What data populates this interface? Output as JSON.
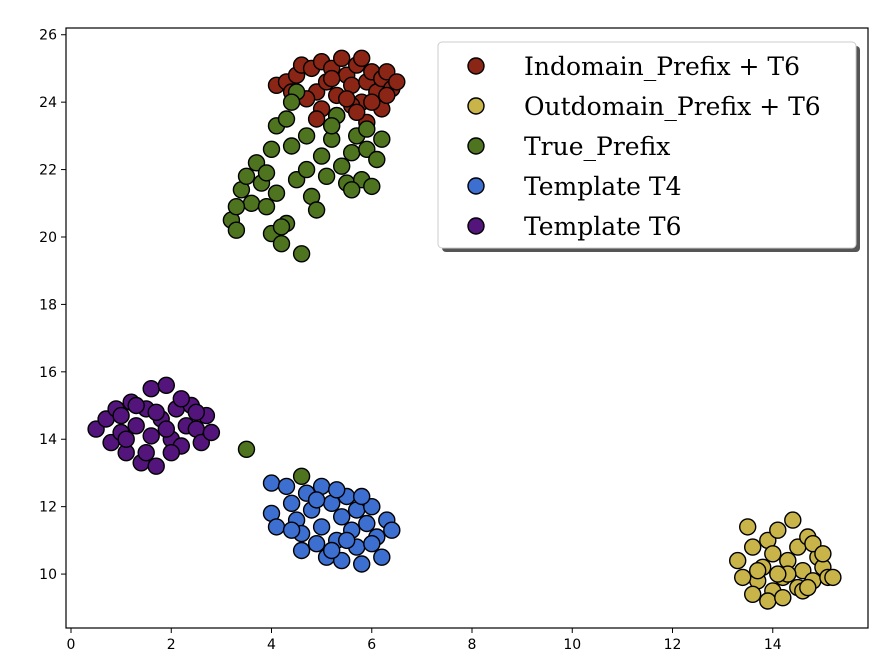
{
  "chart_data": {
    "type": "scatter",
    "title": "",
    "xlabel": "",
    "ylabel": "",
    "xlim": [
      -0.1,
      15.9
    ],
    "ylim": [
      8.4,
      26.2
    ],
    "xticks": [
      0,
      2,
      4,
      6,
      8,
      10,
      12,
      14
    ],
    "yticks": [
      10,
      12,
      14,
      16,
      18,
      20,
      22,
      24,
      26
    ],
    "grid": false,
    "legend": {
      "placement": "top-right",
      "entries": [
        "Indomain_Prefix + T6",
        "Outdomain_Prefix + T6",
        "True_Prefix",
        "Template T4",
        "Template T6"
      ]
    },
    "series": [
      {
        "name": "Indomain_Prefix + T6",
        "color": "#8b2515",
        "points": [
          [
            4.1,
            24.5
          ],
          [
            4.3,
            24.6
          ],
          [
            4.5,
            24.8
          ],
          [
            4.6,
            25.1
          ],
          [
            4.8,
            25.0
          ],
          [
            4.9,
            24.3
          ],
          [
            5.0,
            25.2
          ],
          [
            5.1,
            24.6
          ],
          [
            5.2,
            25.0
          ],
          [
            5.3,
            24.2
          ],
          [
            5.4,
            25.3
          ],
          [
            5.5,
            24.8
          ],
          [
            5.6,
            24.5
          ],
          [
            5.7,
            25.1
          ],
          [
            5.8,
            24.0
          ],
          [
            5.9,
            24.6
          ],
          [
            6.0,
            24.9
          ],
          [
            6.1,
            24.3
          ],
          [
            6.2,
            24.7
          ],
          [
            6.3,
            24.9
          ],
          [
            6.4,
            24.4
          ],
          [
            6.5,
            24.6
          ],
          [
            4.7,
            24.1
          ],
          [
            5.0,
            23.8
          ],
          [
            5.3,
            23.6
          ],
          [
            5.6,
            23.9
          ],
          [
            5.9,
            23.4
          ],
          [
            6.2,
            23.8
          ],
          [
            4.4,
            24.3
          ],
          [
            5.2,
            24.7
          ],
          [
            5.8,
            25.3
          ],
          [
            5.5,
            24.1
          ],
          [
            6.0,
            24.0
          ],
          [
            4.9,
            23.5
          ],
          [
            6.3,
            24.2
          ],
          [
            5.7,
            23.7
          ]
        ]
      },
      {
        "name": "Outdomain_Prefix + T6",
        "color": "#c9b44a",
        "points": [
          [
            13.3,
            10.4
          ],
          [
            13.5,
            11.4
          ],
          [
            13.6,
            10.8
          ],
          [
            13.7,
            9.8
          ],
          [
            13.8,
            10.2
          ],
          [
            13.9,
            11.0
          ],
          [
            14.0,
            9.5
          ],
          [
            14.0,
            10.6
          ],
          [
            14.1,
            11.3
          ],
          [
            14.2,
            9.9
          ],
          [
            14.3,
            10.4
          ],
          [
            14.4,
            11.6
          ],
          [
            14.5,
            9.6
          ],
          [
            14.5,
            10.8
          ],
          [
            14.6,
            10.1
          ],
          [
            14.7,
            11.1
          ],
          [
            14.8,
            9.8
          ],
          [
            14.9,
            10.5
          ],
          [
            15.0,
            10.2
          ],
          [
            15.1,
            9.9
          ],
          [
            15.2,
            9.9
          ],
          [
            13.6,
            9.4
          ],
          [
            13.9,
            9.2
          ],
          [
            14.2,
            9.3
          ],
          [
            14.6,
            9.5
          ],
          [
            14.3,
            10.0
          ],
          [
            13.7,
            10.1
          ],
          [
            14.8,
            10.9
          ],
          [
            15.0,
            10.6
          ],
          [
            13.4,
            9.9
          ],
          [
            14.1,
            10.0
          ],
          [
            14.7,
            9.6
          ]
        ]
      },
      {
        "name": "True_Prefix",
        "color": "#4e7420",
        "points": [
          [
            3.2,
            20.5
          ],
          [
            3.3,
            20.2
          ],
          [
            3.4,
            21.4
          ],
          [
            3.5,
            21.8
          ],
          [
            3.6,
            21.0
          ],
          [
            3.7,
            22.2
          ],
          [
            3.8,
            21.6
          ],
          [
            3.9,
            20.9
          ],
          [
            4.0,
            20.1
          ],
          [
            4.1,
            21.3
          ],
          [
            4.2,
            19.8
          ],
          [
            4.3,
            20.4
          ],
          [
            4.0,
            22.6
          ],
          [
            4.1,
            23.3
          ],
          [
            4.3,
            23.5
          ],
          [
            4.4,
            22.7
          ],
          [
            4.5,
            24.3
          ],
          [
            4.5,
            21.7
          ],
          [
            4.6,
            19.5
          ],
          [
            4.7,
            23.0
          ],
          [
            4.8,
            21.2
          ],
          [
            4.9,
            20.8
          ],
          [
            5.0,
            22.4
          ],
          [
            5.1,
            21.8
          ],
          [
            5.2,
            22.9
          ],
          [
            5.3,
            23.6
          ],
          [
            5.4,
            22.1
          ],
          [
            5.5,
            21.6
          ],
          [
            5.6,
            22.5
          ],
          [
            5.7,
            23.0
          ],
          [
            5.8,
            21.7
          ],
          [
            5.9,
            22.6
          ],
          [
            6.0,
            21.5
          ],
          [
            6.1,
            22.3
          ],
          [
            6.2,
            22.9
          ],
          [
            3.5,
            13.7
          ],
          [
            4.6,
            12.9
          ],
          [
            4.4,
            24.0
          ],
          [
            3.9,
            21.9
          ],
          [
            5.2,
            23.3
          ],
          [
            5.6,
            21.4
          ],
          [
            4.2,
            20.3
          ],
          [
            3.3,
            20.9
          ],
          [
            5.9,
            23.2
          ],
          [
            4.7,
            22.0
          ]
        ]
      },
      {
        "name": "Template T4",
        "color": "#3d6fd1",
        "points": [
          [
            4.0,
            12.7
          ],
          [
            4.0,
            11.8
          ],
          [
            4.1,
            11.4
          ],
          [
            4.3,
            12.6
          ],
          [
            4.4,
            12.1
          ],
          [
            4.5,
            11.6
          ],
          [
            4.6,
            11.2
          ],
          [
            4.6,
            10.7
          ],
          [
            4.7,
            12.4
          ],
          [
            4.8,
            11.9
          ],
          [
            4.9,
            10.9
          ],
          [
            5.0,
            12.6
          ],
          [
            5.0,
            11.4
          ],
          [
            5.1,
            10.5
          ],
          [
            5.2,
            12.1
          ],
          [
            5.3,
            11.0
          ],
          [
            5.4,
            11.7
          ],
          [
            5.4,
            10.4
          ],
          [
            5.5,
            12.3
          ],
          [
            5.6,
            11.3
          ],
          [
            5.7,
            10.8
          ],
          [
            5.7,
            11.9
          ],
          [
            5.8,
            10.3
          ],
          [
            5.9,
            11.5
          ],
          [
            6.0,
            12.0
          ],
          [
            6.1,
            11.1
          ],
          [
            6.2,
            10.5
          ],
          [
            6.3,
            11.6
          ],
          [
            6.4,
            11.3
          ],
          [
            5.2,
            10.7
          ],
          [
            4.9,
            12.2
          ],
          [
            5.5,
            11.0
          ],
          [
            6.0,
            10.9
          ],
          [
            5.8,
            12.3
          ],
          [
            4.4,
            11.3
          ],
          [
            5.3,
            12.5
          ]
        ]
      },
      {
        "name": "Template T6",
        "color": "#53157b",
        "points": [
          [
            0.5,
            14.3
          ],
          [
            0.7,
            14.6
          ],
          [
            0.8,
            13.9
          ],
          [
            0.9,
            14.9
          ],
          [
            1.0,
            14.2
          ],
          [
            1.1,
            13.6
          ],
          [
            1.2,
            15.1
          ],
          [
            1.3,
            14.4
          ],
          [
            1.4,
            13.3
          ],
          [
            1.5,
            14.9
          ],
          [
            1.6,
            15.5
          ],
          [
            1.6,
            14.1
          ],
          [
            1.7,
            13.2
          ],
          [
            1.8,
            14.6
          ],
          [
            1.9,
            15.6
          ],
          [
            2.0,
            14.0
          ],
          [
            2.1,
            14.9
          ],
          [
            2.2,
            13.8
          ],
          [
            2.3,
            14.4
          ],
          [
            2.4,
            15.0
          ],
          [
            2.5,
            14.3
          ],
          [
            2.6,
            13.9
          ],
          [
            2.7,
            14.7
          ],
          [
            2.8,
            14.2
          ],
          [
            1.0,
            14.7
          ],
          [
            1.3,
            15.0
          ],
          [
            1.5,
            13.6
          ],
          [
            1.9,
            14.3
          ],
          [
            2.2,
            15.2
          ],
          [
            2.5,
            14.8
          ],
          [
            1.1,
            14.0
          ],
          [
            1.7,
            14.8
          ],
          [
            2.0,
            13.6
          ]
        ]
      }
    ]
  }
}
